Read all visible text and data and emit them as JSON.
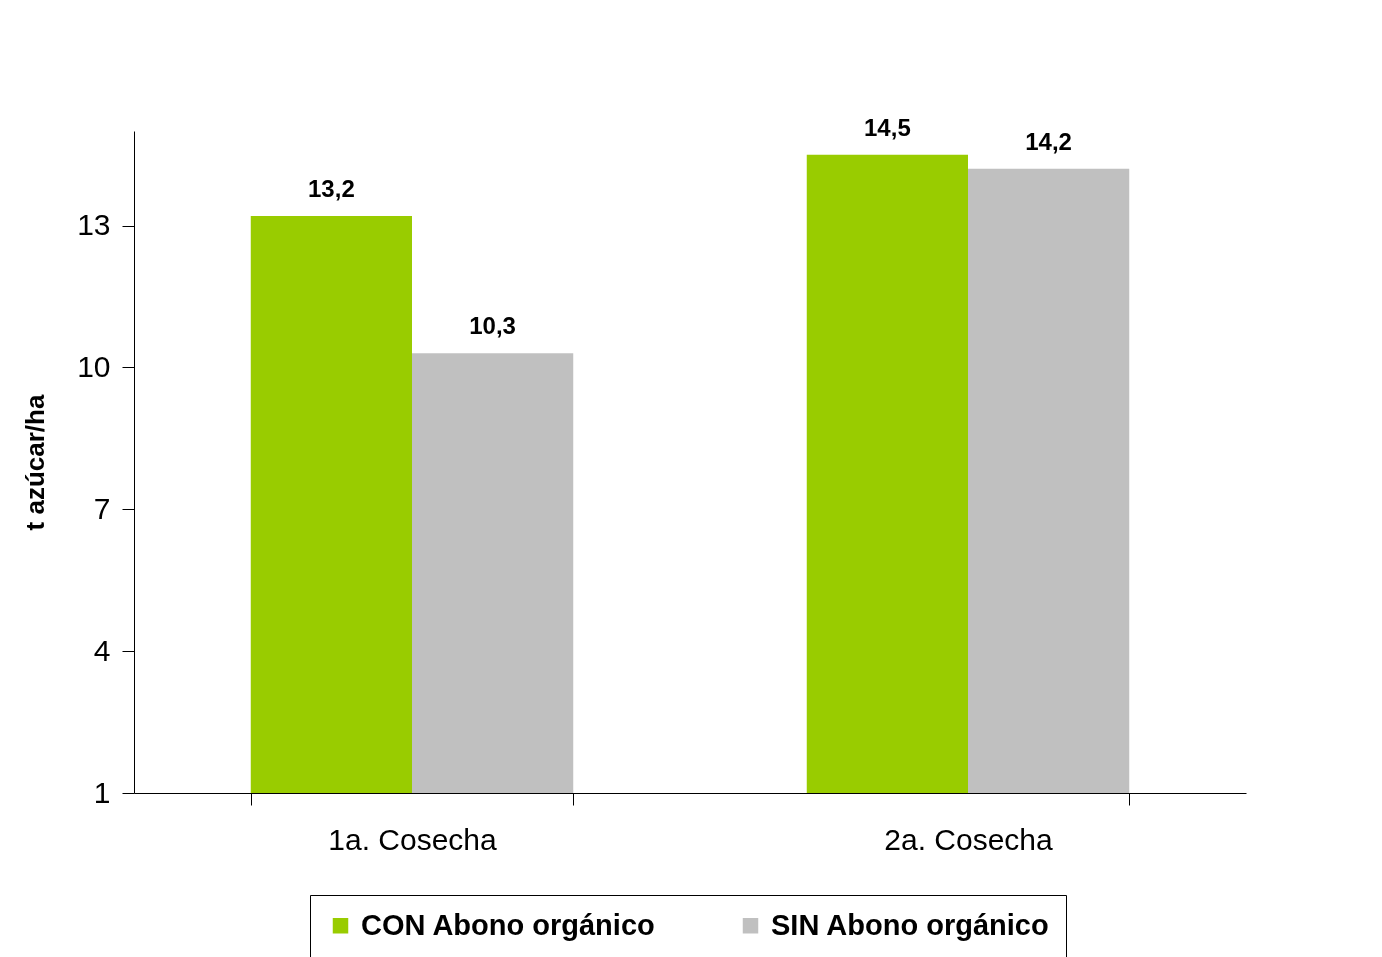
{
  "chart_data": {
    "type": "bar",
    "ylabel": "t azúcar/ha",
    "categories": [
      "1a. Cosecha",
      "2a. Cosecha"
    ],
    "series": [
      {
        "name": "CON Abono orgánico",
        "color": "#99cc00",
        "values": [
          13.2,
          14.5
        ],
        "value_labels": [
          "13,2",
          "14,5"
        ]
      },
      {
        "name": "SIN Abono orgánico",
        "color": "#c0c0c0",
        "values": [
          10.3,
          14.2
        ],
        "value_labels": [
          "10,3",
          "14,2"
        ]
      }
    ],
    "ylim": [
      1,
      15
    ],
    "yticks": [
      1,
      4,
      7,
      10,
      13
    ],
    "grid": false,
    "legend": "bottom"
  }
}
